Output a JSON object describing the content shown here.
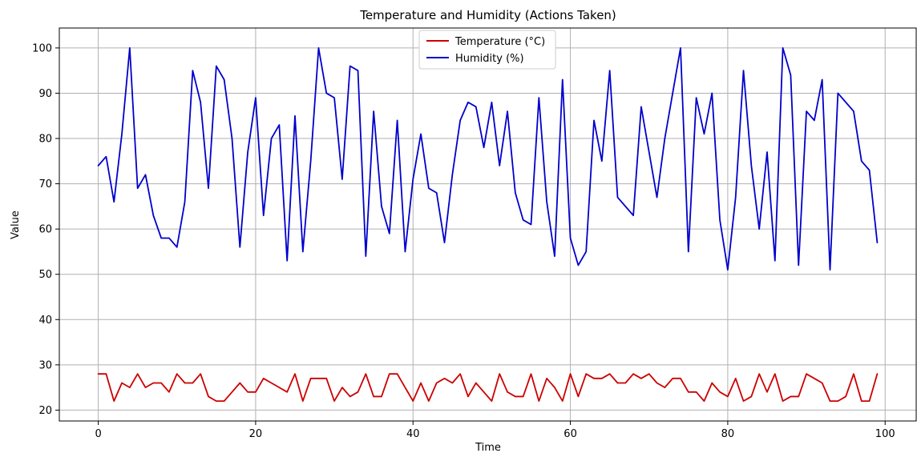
{
  "chart_data": {
    "type": "line",
    "title": "Temperature and Humidity (Actions Taken)",
    "xlabel": "Time",
    "ylabel": "Value",
    "xlim": [
      -4.95,
      103.95
    ],
    "ylim": [
      17.6,
      104.4
    ],
    "xticks": [
      0,
      20,
      40,
      60,
      80,
      100
    ],
    "yticks": [
      20,
      30,
      40,
      50,
      60,
      70,
      80,
      90,
      100
    ],
    "grid": true,
    "legend_position": "top-center",
    "series": [
      {
        "name": "Temperature (°C)",
        "color": "#cc0000",
        "x": [
          0,
          1,
          2,
          3,
          4,
          5,
          6,
          7,
          8,
          9,
          10,
          11,
          12,
          13,
          14,
          15,
          16,
          17,
          18,
          19,
          20,
          21,
          22,
          23,
          24,
          25,
          26,
          27,
          28,
          29,
          30,
          31,
          32,
          33,
          34,
          35,
          36,
          37,
          38,
          39,
          40,
          41,
          42,
          43,
          44,
          45,
          46,
          47,
          48,
          49,
          50,
          51,
          52,
          53,
          54,
          55,
          56,
          57,
          58,
          59,
          60,
          61,
          62,
          63,
          64,
          65,
          66,
          67,
          68,
          69,
          70,
          71,
          72,
          73,
          74,
          75,
          76,
          77,
          78,
          79,
          80,
          81,
          82,
          83,
          84,
          85,
          86,
          87,
          88,
          89,
          90,
          91,
          92,
          93,
          94,
          95,
          96,
          97,
          98,
          99
        ],
        "values": [
          28,
          28,
          22,
          26,
          25,
          28,
          25,
          26,
          26,
          24,
          28,
          26,
          26,
          28,
          23,
          22,
          22,
          24,
          26,
          24,
          24,
          27,
          26,
          25,
          24,
          28,
          22,
          27,
          27,
          27,
          22,
          25,
          23,
          24,
          28,
          23,
          23,
          28,
          28,
          25,
          22,
          26,
          22,
          26,
          27,
          26,
          28,
          23,
          26,
          24,
          22,
          28,
          24,
          23,
          23,
          28,
          22,
          27,
          25,
          22,
          28,
          23,
          28,
          27,
          27,
          28,
          26,
          26,
          28,
          27,
          28,
          26,
          25,
          27,
          27,
          24,
          24,
          22,
          26,
          24,
          23,
          27,
          22,
          23,
          28,
          24,
          28,
          22,
          23,
          23,
          28,
          27,
          26,
          22,
          22,
          23,
          28,
          22,
          22,
          28
        ]
      },
      {
        "name": "Humidity (%)",
        "color": "#0000cc",
        "x": [
          0,
          1,
          2,
          3,
          4,
          5,
          6,
          7,
          8,
          9,
          10,
          11,
          12,
          13,
          14,
          15,
          16,
          17,
          18,
          19,
          20,
          21,
          22,
          23,
          24,
          25,
          26,
          27,
          28,
          29,
          30,
          31,
          32,
          33,
          34,
          35,
          36,
          37,
          38,
          39,
          40,
          41,
          42,
          43,
          44,
          45,
          46,
          47,
          48,
          49,
          50,
          51,
          52,
          53,
          54,
          55,
          56,
          57,
          58,
          59,
          60,
          61,
          62,
          63,
          64,
          65,
          66,
          67,
          68,
          69,
          70,
          71,
          72,
          73,
          74,
          75,
          76,
          77,
          78,
          79,
          80,
          81,
          82,
          83,
          84,
          85,
          86,
          87,
          88,
          89,
          90,
          91,
          92,
          93,
          94,
          95,
          96,
          97,
          98,
          99
        ],
        "values": [
          74,
          76,
          66,
          81,
          100,
          69,
          72,
          63,
          58,
          58,
          56,
          66,
          95,
          88,
          69,
          96,
          93,
          80,
          56,
          77,
          89,
          63,
          80,
          83,
          53,
          85,
          55,
          75,
          100,
          90,
          89,
          71,
          96,
          95,
          54,
          86,
          65,
          59,
          84,
          55,
          71,
          81,
          69,
          68,
          57,
          72,
          84,
          88,
          87,
          78,
          88,
          74,
          86,
          68,
          62,
          61,
          89,
          66,
          54,
          93,
          58,
          52,
          55,
          84,
          75,
          95,
          67,
          65,
          63,
          87,
          77,
          67,
          80,
          90,
          100,
          55,
          89,
          81,
          90,
          62,
          51,
          67,
          95,
          74,
          60,
          77,
          53,
          100,
          94,
          52,
          86,
          84,
          93,
          51,
          90,
          88,
          86,
          75,
          73,
          57
        ]
      }
    ]
  }
}
